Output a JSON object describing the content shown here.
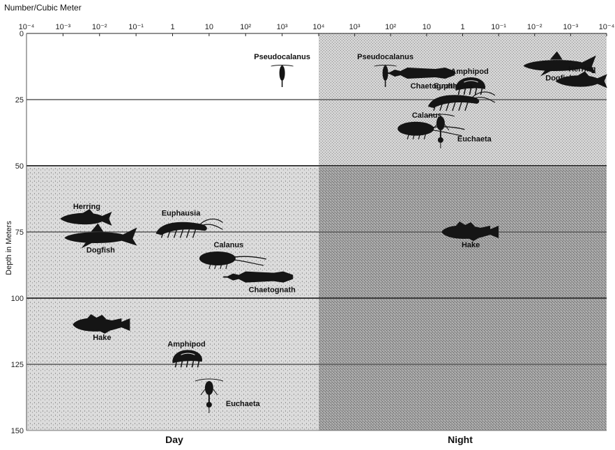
{
  "figure": {
    "unit_label": "Number/Cubic Meter",
    "y_axis_title": "Depth in Meters",
    "top_ticks": [
      "10⁻⁴",
      "10⁻³",
      "10⁻²",
      "10⁻¹",
      "1",
      "10",
      "10²",
      "10³",
      "10⁴",
      "10³",
      "10²",
      "10",
      "1",
      "10⁻¹",
      "10⁻²",
      "10⁻³",
      "10⁻⁴"
    ],
    "depth_ticks": [
      "0",
      "25",
      "50",
      "75",
      "100",
      "125",
      "150"
    ],
    "panels": {
      "day": "Day",
      "night": "Night"
    },
    "colors": {
      "day_shade": "#d9d9d9",
      "night_upper": "#cdcdcd",
      "night_lower": "#9c9c9c",
      "silhouette": "#151515",
      "gridline": "#4a4a4a"
    }
  },
  "organisms": [
    {
      "id": "day-pseudocalanus",
      "name": "Pseudocalanus",
      "shape": "copepod",
      "panel": "day",
      "abundance": "10³",
      "depth_m": 15
    },
    {
      "id": "day-herring",
      "name": "Herring",
      "shape": "fish",
      "panel": "day",
      "abundance": "10⁻³",
      "depth_m": 70
    },
    {
      "id": "day-dogfish",
      "name": "Dogfish",
      "shape": "shark",
      "panel": "day",
      "abundance": "10⁻³",
      "depth_m": 77
    },
    {
      "id": "day-euphausia",
      "name": "Euphausia",
      "shape": "shrimp",
      "panel": "day",
      "abundance": "1",
      "depth_m": 73
    },
    {
      "id": "day-calanus",
      "name": "Calanus",
      "shape": "calanus",
      "panel": "day",
      "abundance": "10",
      "depth_m": 85
    },
    {
      "id": "day-chaetognath",
      "name": "Chaetognath",
      "shape": "worm",
      "panel": "day",
      "abundance": "10²",
      "depth_m": 92
    },
    {
      "id": "day-hake",
      "name": "Hake",
      "shape": "hake",
      "panel": "day",
      "abundance": "10⁻³",
      "depth_m": 110
    },
    {
      "id": "day-amphipod",
      "name": "Amphipod",
      "shape": "amphipod",
      "panel": "day",
      "abundance": "1",
      "depth_m": 123
    },
    {
      "id": "day-euchaeta",
      "name": "Euchaeta",
      "shape": "euchaeta",
      "panel": "day",
      "abundance": "10",
      "depth_m": 135
    },
    {
      "id": "night-pseudocalanus",
      "name": "Pseudocalanus",
      "shape": "copepod",
      "panel": "night",
      "abundance": "10³",
      "depth_m": 15
    },
    {
      "id": "night-chaetognath",
      "name": "Chaetognath",
      "shape": "worm",
      "panel": "night",
      "abundance": "10²",
      "depth_m": 15
    },
    {
      "id": "night-amphipod",
      "name": "Amphipod",
      "shape": "amphipod",
      "panel": "night",
      "abundance": "1",
      "depth_m": 20
    },
    {
      "id": "night-euphausia",
      "name": "Euphausia",
      "shape": "shrimp",
      "panel": "night",
      "abundance": "10",
      "depth_m": 25
    },
    {
      "id": "night-euchaeta",
      "name": "Euchaeta",
      "shape": "euchaeta",
      "panel": "night",
      "abundance": "10",
      "depth_m": 35
    },
    {
      "id": "night-calanus",
      "name": "Calanus",
      "shape": "calanus",
      "panel": "night",
      "abundance": "10²",
      "depth_m": 36
    },
    {
      "id": "night-dogfish",
      "name": "Dogfish",
      "shape": "shark",
      "panel": "night",
      "abundance": "10⁻²",
      "depth_m": 12
    },
    {
      "id": "night-herring",
      "name": "Herring",
      "shape": "fish",
      "panel": "night",
      "abundance": "10⁻²",
      "depth_m": 18
    },
    {
      "id": "night-hake",
      "name": "Hake",
      "shape": "hake",
      "panel": "night",
      "abundance": "10⁻¹",
      "depth_m": 75
    }
  ]
}
